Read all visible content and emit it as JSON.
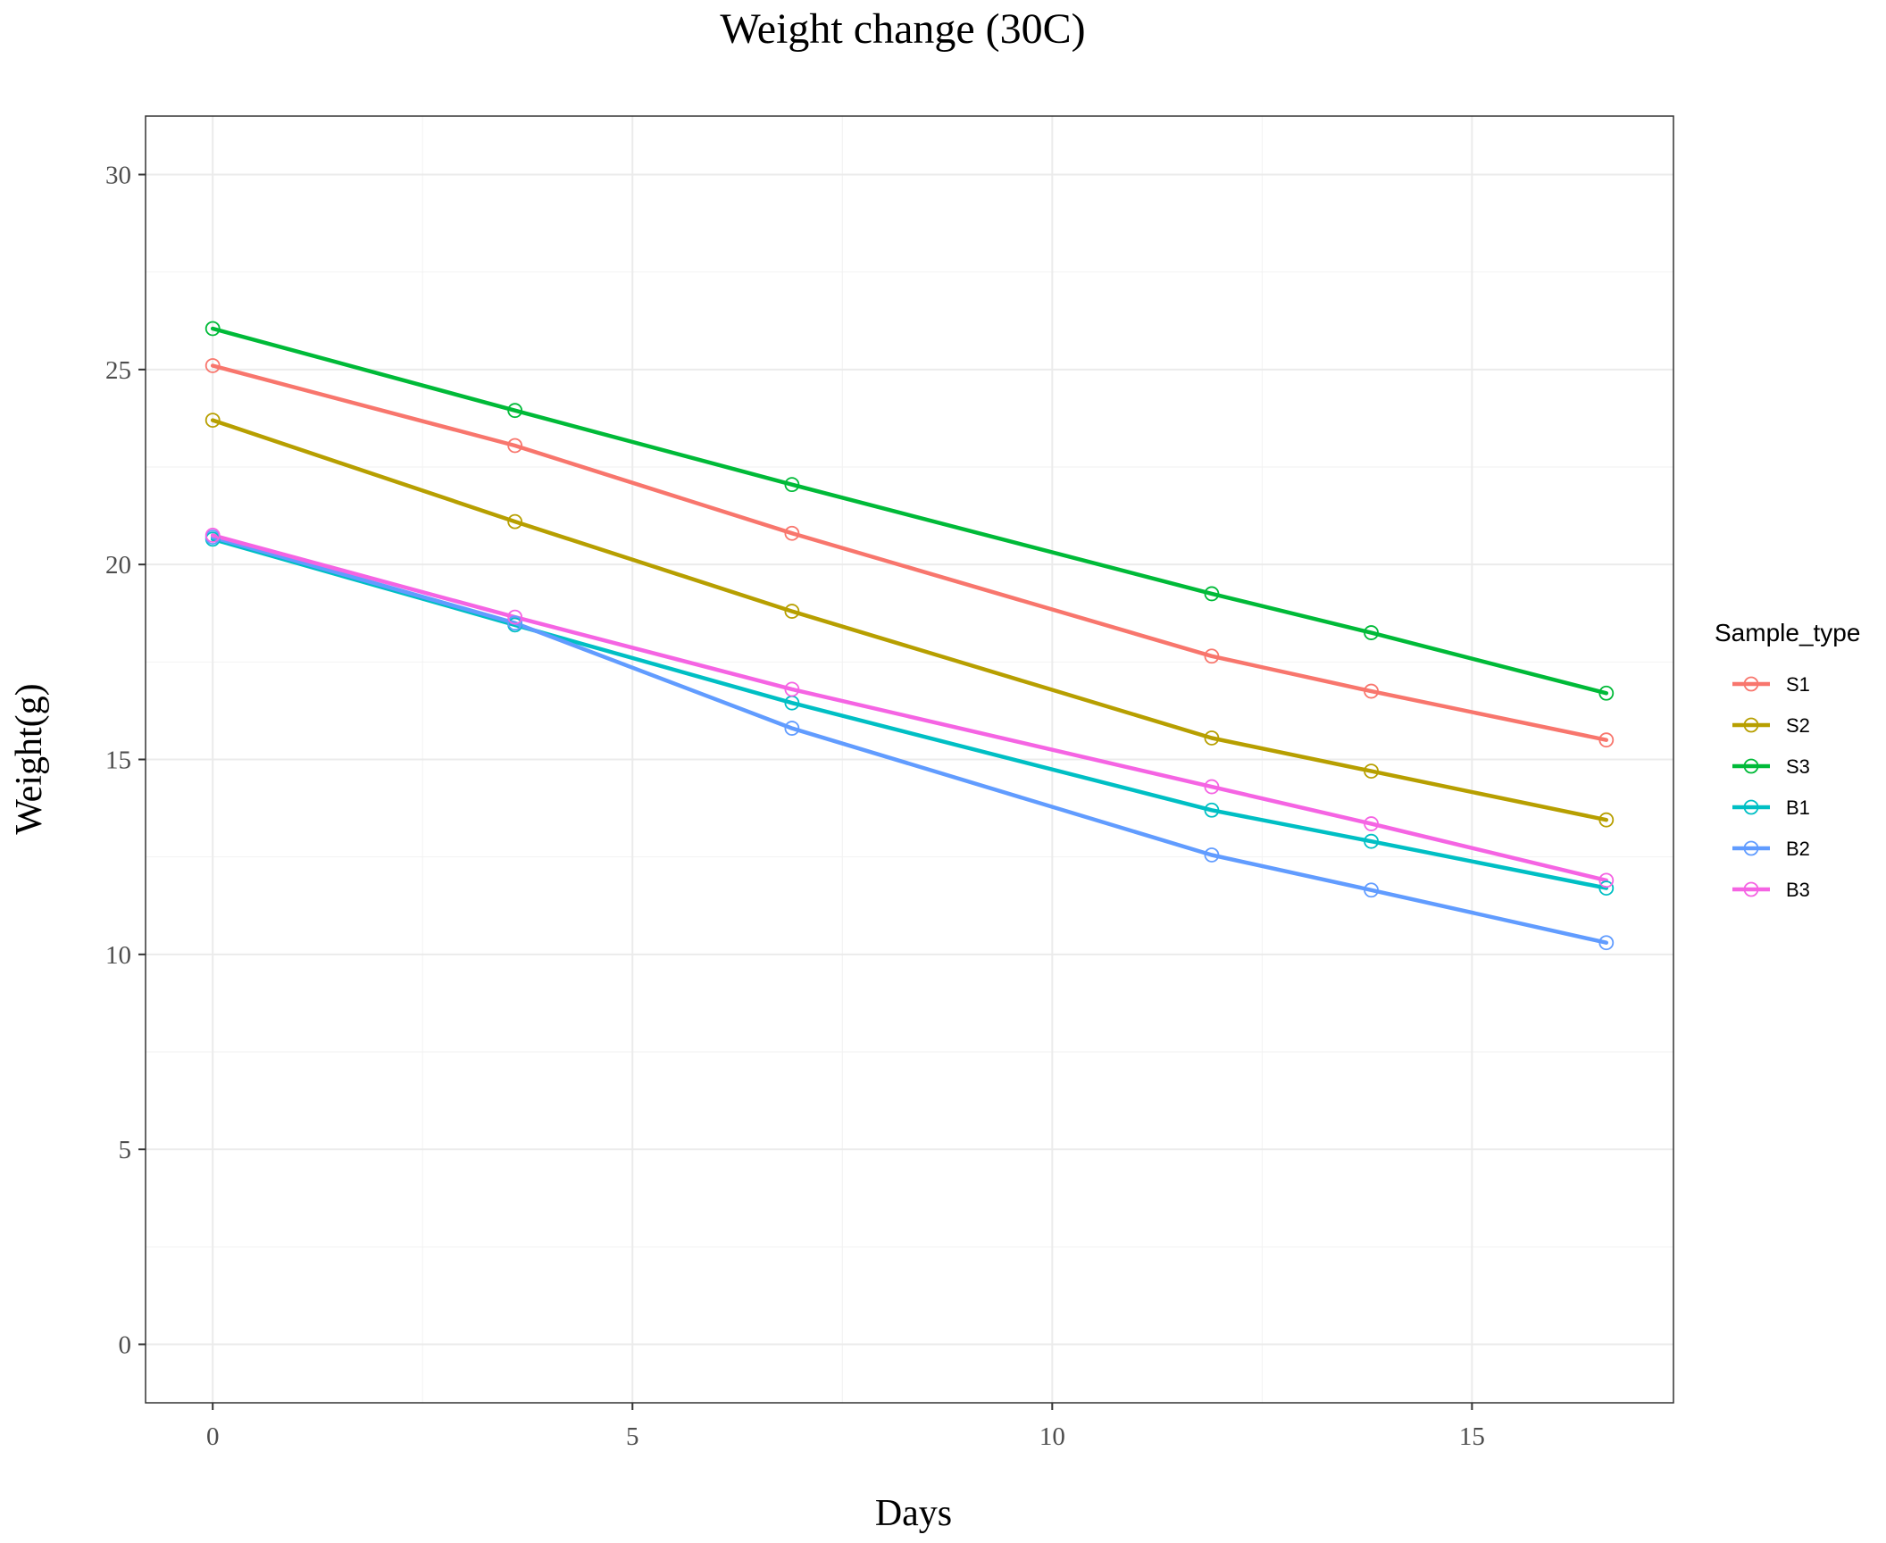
{
  "chart_data": {
    "type": "line",
    "title": "Weight change (30C)",
    "xlabel": "Days",
    "ylabel": "Weight(g)",
    "xlim": [
      -0.8,
      17.4
    ],
    "ylim": [
      -1.5,
      31.5
    ],
    "x_ticks": [
      0,
      5,
      10,
      15
    ],
    "y_ticks": [
      0,
      5,
      10,
      15,
      20,
      25,
      30
    ],
    "grid": true,
    "legend": {
      "title": "Sample_type",
      "position": "right"
    },
    "x": [
      0,
      3.6,
      6.9,
      11.9,
      13.8,
      16.6
    ],
    "series": [
      {
        "name": "S1",
        "color": "#F8766D",
        "values": [
          25.1,
          23.05,
          20.8,
          17.65,
          16.75,
          15.5
        ]
      },
      {
        "name": "S2",
        "color": "#B79F00",
        "values": [
          23.7,
          21.1,
          18.8,
          15.55,
          14.7,
          13.45
        ]
      },
      {
        "name": "S3",
        "color": "#00BA38",
        "values": [
          26.05,
          23.95,
          22.05,
          19.25,
          18.25,
          16.7
        ]
      },
      {
        "name": "B1",
        "color": "#00BFC4",
        "values": [
          20.65,
          18.45,
          16.45,
          13.7,
          12.9,
          11.7
        ]
      },
      {
        "name": "B2",
        "color": "#619CFF",
        "values": [
          20.7,
          18.5,
          15.8,
          12.55,
          11.65,
          10.3
        ]
      },
      {
        "name": "B3",
        "color": "#F564E3",
        "values": [
          20.75,
          18.65,
          16.8,
          14.3,
          13.35,
          11.9
        ]
      }
    ]
  }
}
